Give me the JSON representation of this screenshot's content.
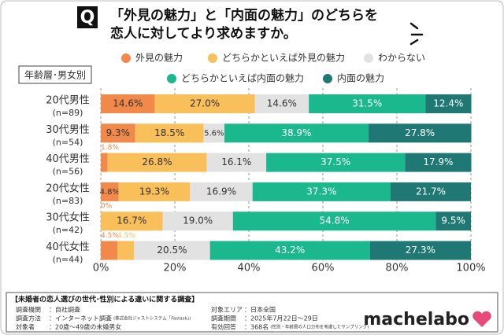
{
  "chart_data": {
    "type": "stacked-bar-horizontal",
    "title": [
      "「外見の魅力」と「内面の魅力」のどちらを",
      "恋人に対してより求めますか。"
    ],
    "title_icon": "Q",
    "group_label": "年齢層･男女別",
    "categories": [
      "20代男性",
      "30代男性",
      "40代男性",
      "20代女性",
      "30代女性",
      "40代女性"
    ],
    "sample_sizes": [
      "(n=89)",
      "(n=54)",
      "(n=56)",
      "(n=83)",
      "(n=42)",
      "(n=44)"
    ],
    "series": [
      {
        "name": "外見の魅力",
        "color": "#f0894a",
        "values": [
          14.6,
          9.3,
          1.8,
          4.8,
          0,
          4.5
        ],
        "value_labels": [
          "14.6%",
          "9.3%",
          "1.8%",
          "4.8%",
          "0%",
          "4.5%"
        ]
      },
      {
        "name": "どちらかといえば外見の魅力",
        "color": "#f9bf5b",
        "values": [
          27.0,
          18.5,
          26.8,
          19.3,
          16.7,
          4.5
        ],
        "value_labels": [
          "27.0%",
          "18.5%",
          "26.8%",
          "19.3%",
          "16.7%",
          "4.5%"
        ]
      },
      {
        "name": "わからない",
        "color": "#e2e2e2",
        "values": [
          14.6,
          5.6,
          16.1,
          16.9,
          19.0,
          20.5
        ],
        "value_labels": [
          "14.6%",
          "5.6%",
          "16.1%",
          "16.9%",
          "19.0%",
          "20.5%"
        ]
      },
      {
        "name": "どちらかといえば内面の魅力",
        "color": "#1bb78d",
        "values": [
          31.5,
          38.9,
          37.5,
          37.3,
          54.8,
          43.2
        ],
        "value_labels": [
          "31.5%",
          "38.9%",
          "37.5%",
          "37.3%",
          "54.8%",
          "43.2%"
        ]
      },
      {
        "name": "内面の魅力",
        "color": "#1f7873",
        "values": [
          12.4,
          27.8,
          17.9,
          21.7,
          9.5,
          27.3
        ],
        "value_labels": [
          "12.4%",
          "27.8%",
          "17.9%",
          "21.7%",
          "9.5%",
          "27.3%"
        ]
      }
    ],
    "xlim": [
      0,
      100
    ],
    "xticks": [
      {
        "value": 0,
        "label": "0%"
      },
      {
        "value": 20,
        "label": "20%"
      },
      {
        "value": 40,
        "label": "40%"
      },
      {
        "value": 60,
        "label": "60%"
      },
      {
        "value": 80,
        "label": "80%"
      },
      {
        "value": 100,
        "label": "100%"
      }
    ],
    "grid": true
  },
  "footer": {
    "heading": "【未婚者の恋人選びの世代･性別による違いに関する調査】",
    "left": [
      {
        "label": "調査機関",
        "value": "：自社調査",
        "note": ""
      },
      {
        "label": "調査方法",
        "value": "：インターネット調査",
        "note": "(株式会社ジャストシステム「Fastask」)"
      },
      {
        "label": "対象者",
        "value": "：20歳～49歳の未婚男女",
        "note": ""
      }
    ],
    "right": [
      {
        "label": "対象エリア",
        "value": "：日本全国",
        "note": ""
      },
      {
        "label": "調査期間",
        "value": "：2025年7月22日～29日",
        "note": ""
      },
      {
        "label": "有効回答",
        "value": "：368名",
        "note": "(性別・年齢層の人口分布を考慮したサンプリング)"
      }
    ],
    "logo": "machelabo"
  }
}
